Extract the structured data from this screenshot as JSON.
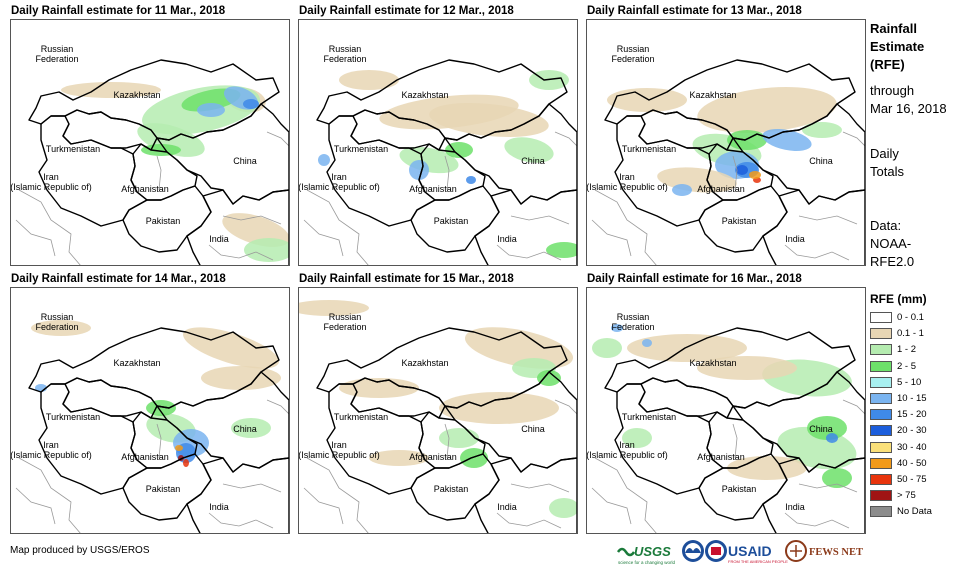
{
  "panels": [
    {
      "title": "Daily Rainfall estimate for 11 Mar., 2018"
    },
    {
      "title": "Daily Rainfall estimate for 12 Mar., 2018"
    },
    {
      "title": "Daily Rainfall estimate for 13 Mar., 2018"
    },
    {
      "title": "Daily Rainfall estimate for 14 Mar., 2018"
    },
    {
      "title": "Daily Rainfall estimate for 15 Mar., 2018"
    },
    {
      "title": "Daily Rainfall estimate for 16 Mar., 2018"
    }
  ],
  "map_labels": {
    "russia": "Russian\nFederation",
    "kazakhstan": "Kazakhstan",
    "turkmenistan": "Turkmenistan",
    "china": "China",
    "iran": "Iran\n(Islamic Republic of)",
    "afghanistan": "Afghanistan",
    "pakistan": "Pakistan",
    "india": "India"
  },
  "sidebar": {
    "heading": "Rainfall\nEstimate\n(RFE)",
    "through": "through\nMar 16, 2018",
    "totals": "Daily\nTotals",
    "data_label": "Data:\nNOAA-\nRFE2.0"
  },
  "legend": {
    "title": "RFE (mm)",
    "items": [
      {
        "label": "0 - 0.1",
        "color": "#ffffff"
      },
      {
        "label": "0.1 - 1",
        "color": "#e8d6b4"
      },
      {
        "label": "1 - 2",
        "color": "#b5ecb0"
      },
      {
        "label": "2 - 5",
        "color": "#6de06a"
      },
      {
        "label": "5 - 10",
        "color": "#a8f0f0"
      },
      {
        "label": "10 - 15",
        "color": "#7ab4f0"
      },
      {
        "label": "15 - 20",
        "color": "#3f8ae8"
      },
      {
        "label": "20 - 30",
        "color": "#1c5edc"
      },
      {
        "label": "30 - 40",
        "color": "#fae07a"
      },
      {
        "label": "40 - 50",
        "color": "#f29a1a"
      },
      {
        "label": "50 - 75",
        "color": "#e8340c"
      },
      {
        "label": "> 75",
        "color": "#a01414"
      },
      {
        "label": "No Data",
        "color": "#8c8c8c"
      }
    ]
  },
  "credit": "Map produced by USGS/EROS",
  "logos": {
    "usgs": "USGS",
    "usgs_tag": "science for a changing world",
    "usaid": "USAID",
    "usaid_tag": "FROM THE AMERICAN PEOPLE",
    "fewsnet": "FEWS NET"
  }
}
